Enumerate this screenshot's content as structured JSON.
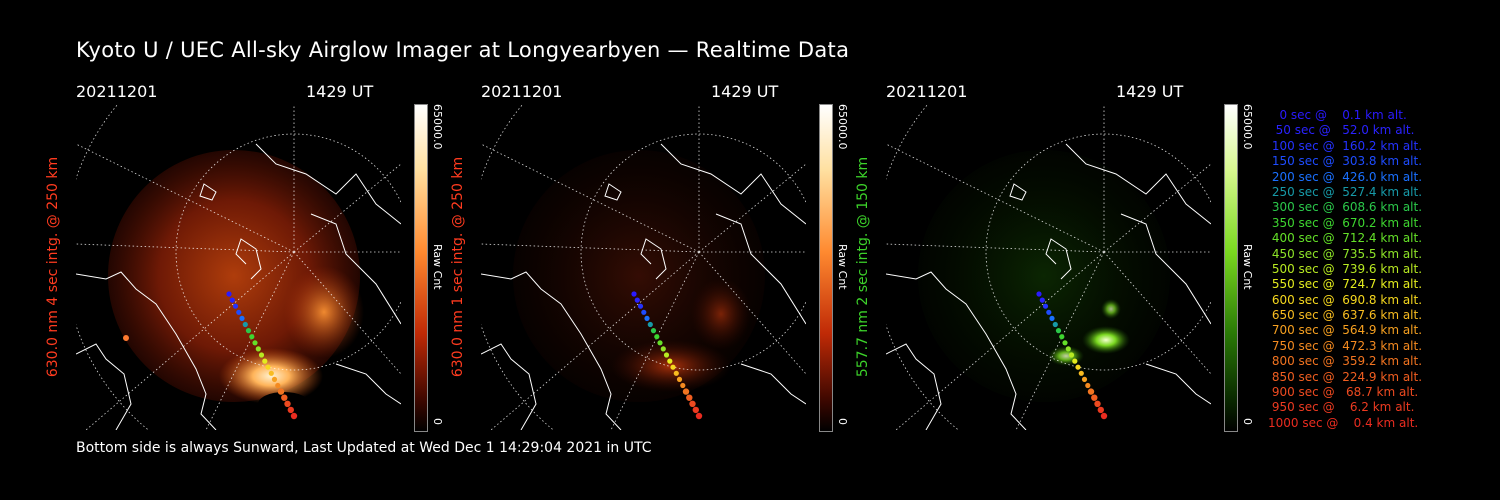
{
  "title": "Kyoto U / UEC All-sky Airglow Imager at Longyearbyen — Realtime Data",
  "footer": "Bottom side is always Sunward, Last Updated at Wed Dec  1 14:29:04 2021 in UTC",
  "panels": [
    {
      "date": "20211201",
      "time": "1429 UT",
      "ylabel": "630.0 nm 4 sec intg. @ 250 km",
      "label_color": "#ff3b1f",
      "cbar_max": "65000.0",
      "cbar_unit": "Raw Cnt",
      "cbar_min": "0"
    },
    {
      "date": "20211201",
      "time": "1429 UT",
      "ylabel": "630.0 nm 1 sec intg. @ 250 km",
      "label_color": "#ff3b1f",
      "cbar_max": "65000.0",
      "cbar_unit": "Raw Cnt",
      "cbar_min": "0"
    },
    {
      "date": "20211201",
      "time": "1429 UT",
      "ylabel": "557.7 nm 2 sec intg. @ 150 km",
      "label_color": "#3cd22a",
      "cbar_max": "65000.0",
      "cbar_unit": "Raw Cnt",
      "cbar_min": "0"
    }
  ],
  "legend": [
    {
      "text": "   0 sec @    0.1 km alt.",
      "color": "#2a1aff"
    },
    {
      "text": "  50 sec @   52.0 km alt.",
      "color": "#2a22ff"
    },
    {
      "text": " 100 sec @  160.2 km alt.",
      "color": "#2432ff"
    },
    {
      "text": " 150 sec @  303.8 km alt.",
      "color": "#1e4cff"
    },
    {
      "text": " 200 sec @  426.0 km alt.",
      "color": "#1a70ff"
    },
    {
      "text": " 250 sec @  527.4 km alt.",
      "color": "#179aa8"
    },
    {
      "text": " 300 sec @  608.6 km alt.",
      "color": "#2bc84a"
    },
    {
      "text": " 350 sec @  670.2 km alt.",
      "color": "#3ed630"
    },
    {
      "text": " 400 sec @  712.4 km alt.",
      "color": "#64e028"
    },
    {
      "text": " 450 sec @  735.5 km alt.",
      "color": "#8ee428"
    },
    {
      "text": " 500 sec @  739.6 km alt.",
      "color": "#b8ea22"
    },
    {
      "text": " 550 sec @  724.7 km alt.",
      "color": "#e4ec1e"
    },
    {
      "text": " 600 sec @  690.8 km alt.",
      "color": "#f6d81e"
    },
    {
      "text": " 650 sec @  637.6 km alt.",
      "color": "#f8bc20"
    },
    {
      "text": " 700 sec @  564.9 km alt.",
      "color": "#f6a020"
    },
    {
      "text": " 750 sec @  472.3 km alt.",
      "color": "#f48a20"
    },
    {
      "text": " 800 sec @  359.2 km alt.",
      "color": "#f27420"
    },
    {
      "text": " 850 sec @  224.9 km alt.",
      "color": "#f05e20"
    },
    {
      "text": " 900 sec @   68.7 km alt.",
      "color": "#ee4a20"
    },
    {
      "text": " 950 sec @    6.2 km alt.",
      "color": "#ec3a20"
    },
    {
      "text": "1000 sec @    0.4 km alt.",
      "color": "#ea2c20"
    }
  ]
}
